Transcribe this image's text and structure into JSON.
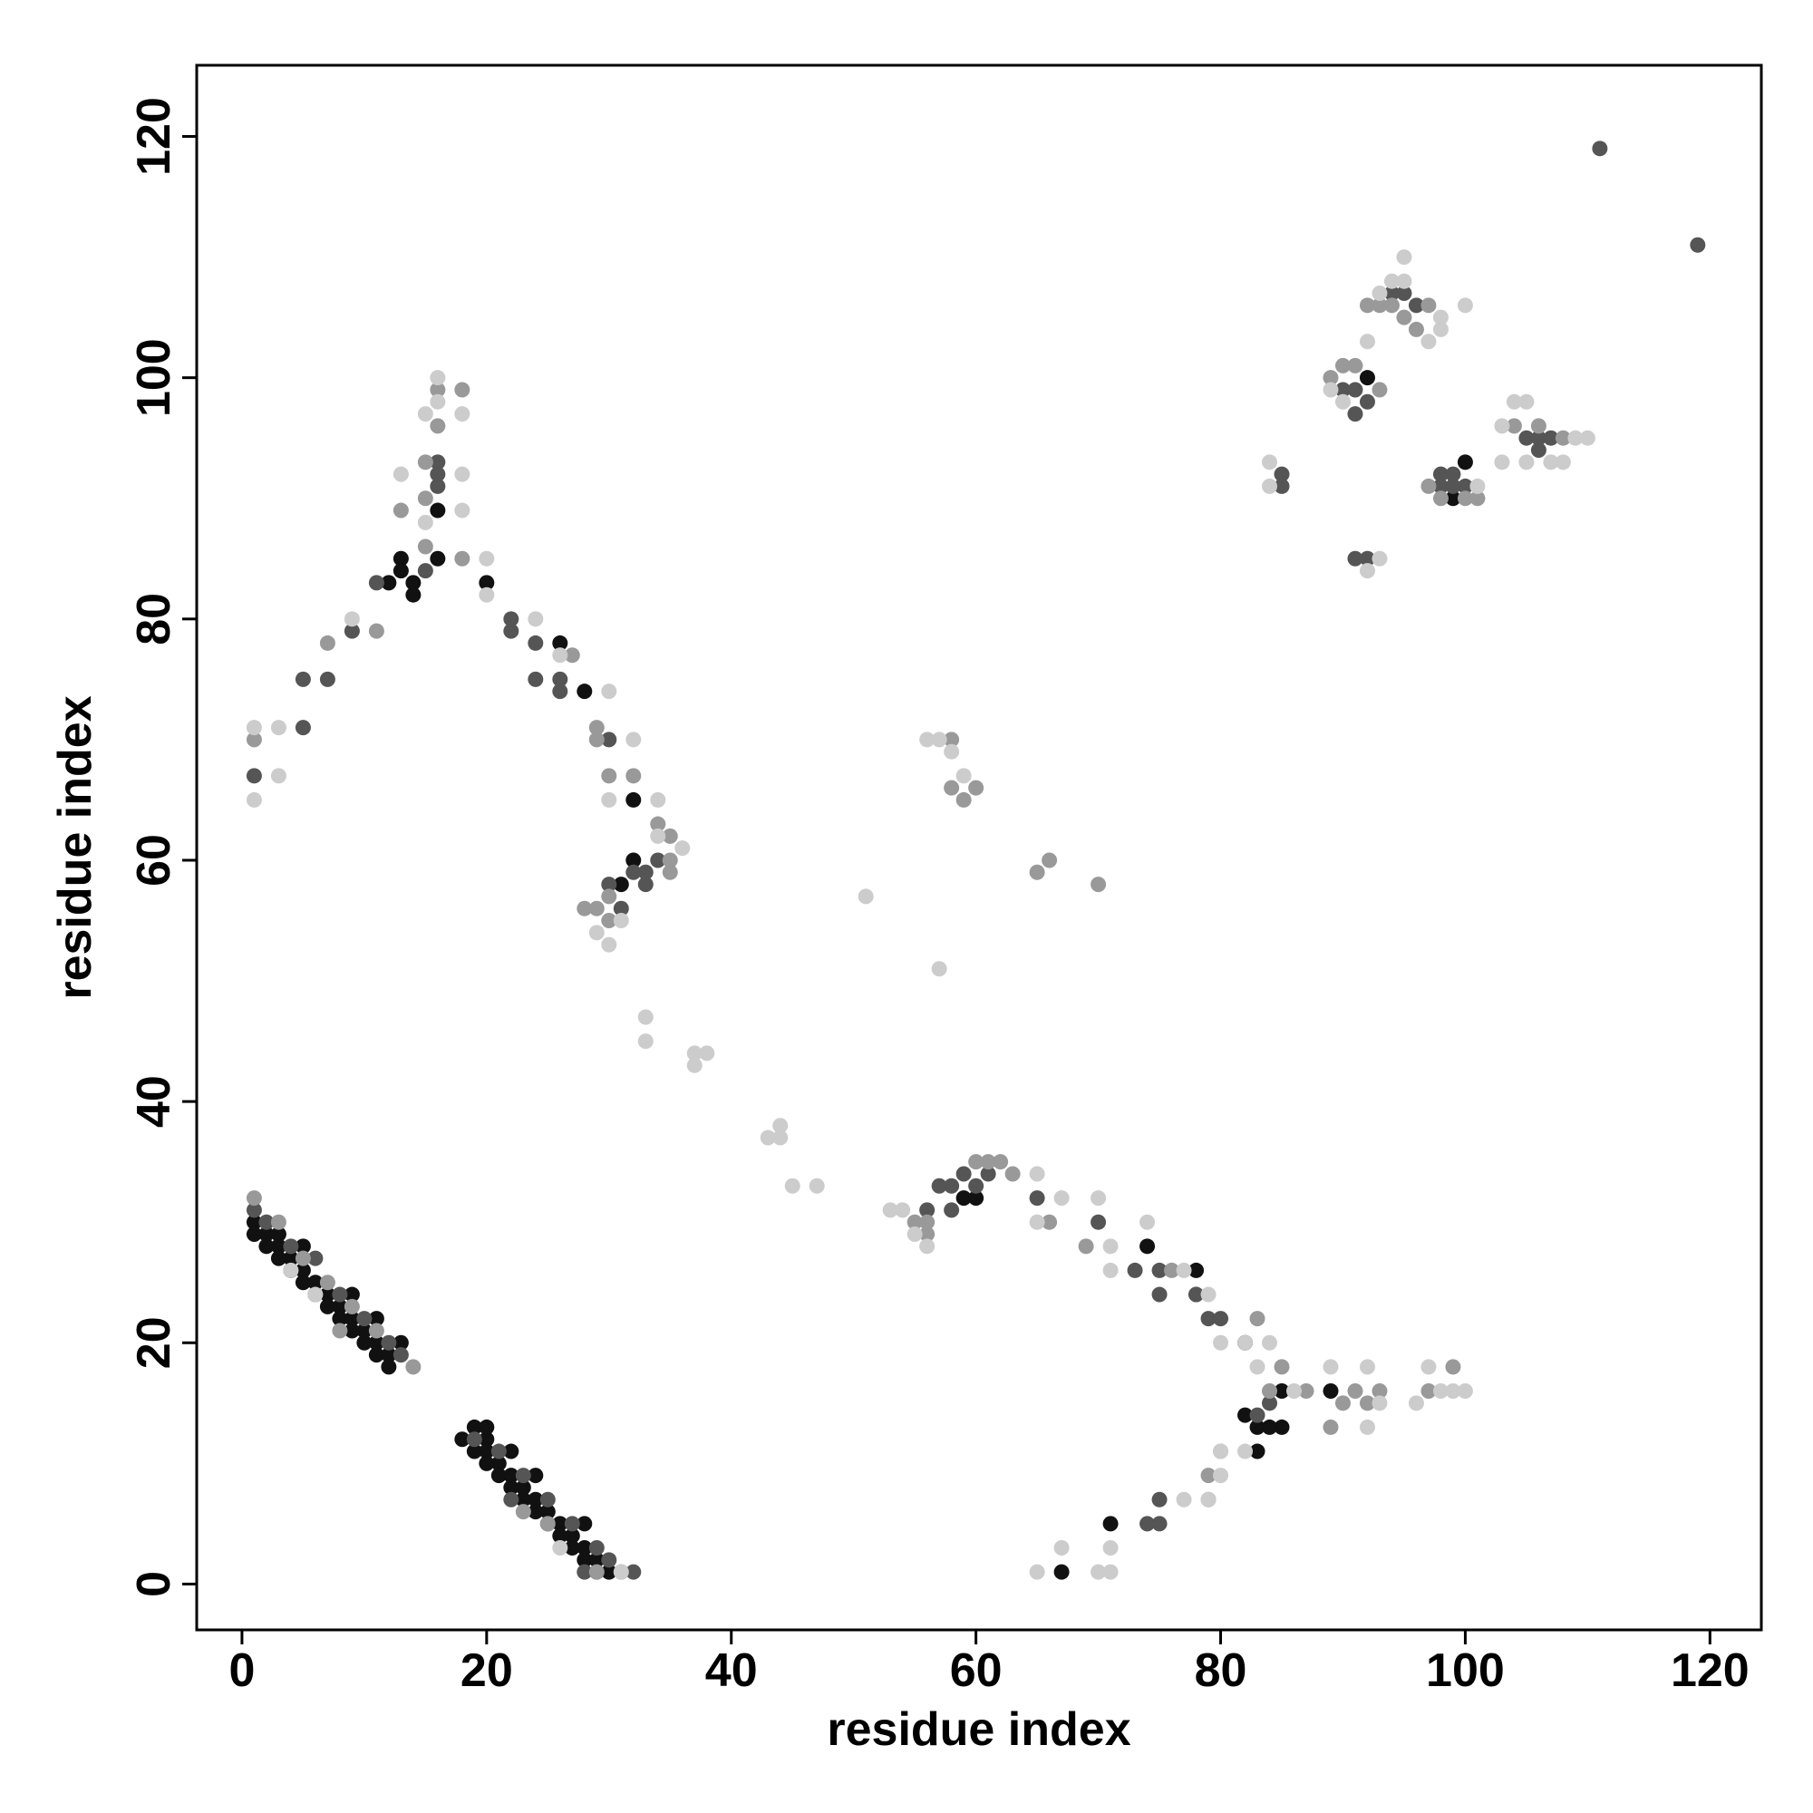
{
  "chart_data": {
    "type": "scatter",
    "x_label": "residue index",
    "y_label": "residue index",
    "xlim": [
      -3.7,
      124.2
    ],
    "ylim": [
      -3.8,
      125.9
    ],
    "xticks": [
      0,
      20,
      40,
      60,
      80,
      100,
      120
    ],
    "yticks": [
      0,
      20,
      40,
      60,
      80,
      100,
      120
    ],
    "grid": false,
    "series": [
      {
        "color": "#111111",
        "x": [
          1,
          2,
          2,
          3,
          3,
          4,
          4,
          5,
          5,
          6,
          6,
          7,
          7,
          8,
          8,
          9,
          9,
          10,
          10,
          11,
          11,
          12,
          12,
          13,
          11,
          9,
          5,
          3,
          1,
          18,
          19,
          19,
          20,
          20,
          20,
          21,
          21,
          22,
          22,
          23,
          23,
          24,
          24,
          25,
          25,
          26,
          26,
          27,
          27,
          28,
          28,
          29,
          29,
          30,
          20,
          22,
          24,
          28,
          13,
          13,
          14,
          14,
          12,
          16,
          16,
          20,
          26,
          28,
          32,
          32,
          31,
          59,
          60,
          67,
          71,
          74,
          78,
          78,
          82,
          82,
          83,
          83,
          84,
          85,
          85,
          89,
          92,
          100,
          99
        ],
        "values": [
          30,
          29,
          28,
          28,
          27,
          27,
          26,
          26,
          25,
          25,
          24,
          24,
          23,
          23,
          22,
          22,
          21,
          21,
          20,
          20,
          19,
          19,
          18,
          20,
          22,
          24,
          28,
          29,
          29,
          12,
          11,
          13,
          12,
          11,
          13,
          10,
          9,
          9,
          8,
          8,
          7,
          7,
          6,
          6,
          5,
          5,
          4,
          4,
          3,
          3,
          2,
          2,
          1,
          1,
          10,
          11,
          9,
          5,
          85,
          84,
          83,
          82,
          83,
          85,
          89,
          83,
          78,
          74,
          65,
          60,
          58,
          32,
          32,
          1,
          5,
          28,
          26,
          24,
          20,
          14,
          13,
          11,
          13,
          13,
          16,
          16,
          100,
          93,
          90
        ]
      },
      {
        "color": "#555555",
        "x": [
          1,
          5,
          5,
          7,
          9,
          11,
          15,
          22,
          22,
          24,
          24,
          26,
          26,
          30,
          30,
          31,
          32,
          33,
          34,
          33,
          56,
          57,
          58,
          58,
          59,
          60,
          61,
          65,
          70,
          73,
          75,
          75,
          75,
          75,
          74,
          78,
          79,
          80,
          84,
          83,
          85,
          85,
          91,
          92,
          90,
          91,
          92,
          91,
          98,
          98,
          99,
          99,
          100,
          96,
          95,
          94,
          106,
          105,
          106,
          107,
          119,
          111,
          16,
          16,
          16,
          1,
          2,
          4,
          6,
          8,
          10,
          12,
          13,
          19,
          21,
          23,
          25,
          27,
          29,
          30,
          31,
          32,
          22,
          28
        ],
        "values": [
          67,
          71,
          75,
          75,
          79,
          83,
          84,
          80,
          79,
          78,
          75,
          74,
          75,
          70,
          58,
          56,
          59,
          58,
          60,
          59,
          31,
          33,
          31,
          33,
          34,
          33,
          34,
          32,
          30,
          26,
          26,
          24,
          7,
          5,
          5,
          24,
          22,
          22,
          15,
          14,
          92,
          91,
          85,
          85,
          99,
          99,
          98,
          97,
          92,
          91,
          91,
          92,
          91,
          106,
          107,
          107,
          95,
          95,
          94,
          95,
          111,
          119,
          91,
          93,
          92,
          31,
          30,
          28,
          27,
          24,
          22,
          20,
          19,
          12,
          11,
          9,
          7,
          5,
          3,
          2,
          1,
          1,
          7,
          1
        ]
      },
      {
        "color": "#999999",
        "x": [
          1,
          1,
          7,
          11,
          15,
          16,
          16,
          15,
          13,
          15,
          18,
          18,
          27,
          29,
          29,
          30,
          32,
          29,
          28,
          30,
          30,
          34,
          35,
          35,
          35,
          55,
          56,
          56,
          58,
          58,
          59,
          60,
          60,
          61,
          62,
          63,
          65,
          66,
          70,
          66,
          69,
          76,
          79,
          79,
          80,
          83,
          84,
          85,
          87,
          89,
          90,
          91,
          92,
          93,
          97,
          99,
          92,
          93,
          94,
          95,
          96,
          97,
          89,
          90,
          91,
          93,
          97,
          98,
          100,
          101,
          106,
          104,
          108,
          3,
          5,
          7,
          9,
          11,
          23,
          25,
          29,
          8,
          14
        ],
        "values": [
          70,
          32,
          78,
          79,
          86,
          96,
          99,
          90,
          89,
          93,
          85,
          99,
          77,
          71,
          70,
          67,
          67,
          56,
          56,
          55,
          57,
          63,
          62,
          60,
          59,
          30,
          29,
          30,
          70,
          66,
          65,
          66,
          35,
          35,
          35,
          34,
          59,
          60,
          58,
          30,
          28,
          26,
          7,
          9,
          11,
          22,
          16,
          18,
          16,
          13,
          15,
          16,
          15,
          16,
          16,
          18,
          106,
          106,
          106,
          105,
          104,
          106,
          100,
          101,
          101,
          99,
          91,
          90,
          90,
          90,
          96,
          96,
          95,
          30,
          27,
          25,
          23,
          21,
          6,
          5,
          1,
          21,
          18
        ]
      },
      {
        "color": "#cccccc",
        "x": [
          1,
          1,
          3,
          3,
          9,
          13,
          15,
          16,
          16,
          18,
          18,
          18,
          15,
          20,
          20,
          24,
          26,
          30,
          30,
          32,
          34,
          34,
          36,
          30,
          29,
          31,
          33,
          33,
          37,
          38,
          37,
          43,
          44,
          44,
          45,
          47,
          51,
          57,
          53,
          54,
          55,
          56,
          57,
          56,
          58,
          59,
          65,
          65,
          67,
          70,
          71,
          71,
          74,
          77,
          79,
          80,
          82,
          83,
          84,
          86,
          89,
          92,
          92,
          93,
          96,
          97,
          98,
          99,
          100,
          80,
          80,
          77,
          79,
          82,
          65,
          67,
          70,
          71,
          71,
          84,
          84,
          89,
          90,
          92,
          93,
          95,
          95,
          97,
          98,
          98,
          100,
          94,
          103,
          103,
          104,
          105,
          105,
          107,
          108,
          110,
          109,
          93,
          92,
          101,
          4,
          6,
          26,
          31
        ],
        "values": [
          65,
          71,
          71,
          67,
          80,
          92,
          97,
          100,
          98,
          97,
          92,
          89,
          88,
          85,
          82,
          80,
          77,
          74,
          65,
          70,
          65,
          62,
          61,
          53,
          54,
          55,
          47,
          45,
          44,
          44,
          43,
          37,
          38,
          37,
          33,
          33,
          57,
          51,
          31,
          31,
          29,
          28,
          70,
          70,
          69,
          67,
          34,
          30,
          32,
          32,
          28,
          26,
          30,
          26,
          24,
          20,
          20,
          18,
          20,
          16,
          18,
          18,
          13,
          15,
          15,
          18,
          16,
          16,
          16,
          11,
          9,
          7,
          7,
          11,
          1,
          3,
          1,
          1,
          3,
          93,
          91,
          99,
          98,
          103,
          107,
          110,
          108,
          103,
          105,
          104,
          106,
          108,
          96,
          93,
          98,
          98,
          93,
          93,
          93,
          95,
          95,
          85,
          84,
          91,
          26,
          24,
          3,
          1
        ]
      }
    ]
  }
}
